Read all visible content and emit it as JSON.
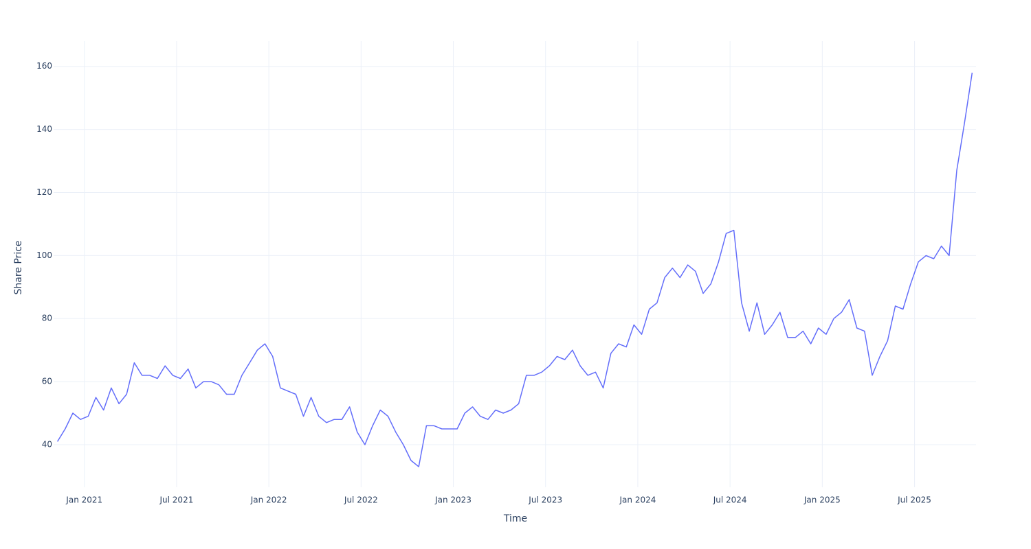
{
  "chart_data": {
    "type": "line",
    "x_label": "Time",
    "y_label": "Share Price",
    "x": [
      "2020-11",
      "2020-11",
      "2020-12",
      "2020-12",
      "2021-01",
      "2021-01",
      "2021-02",
      "2021-02",
      "2021-03",
      "2021-03",
      "2021-04",
      "2021-04",
      "2021-05",
      "2021-05",
      "2021-06",
      "2021-06",
      "2021-07",
      "2021-07",
      "2021-08",
      "2021-08",
      "2021-09",
      "2021-09",
      "2021-10",
      "2021-10",
      "2021-11",
      "2021-11",
      "2021-12",
      "2021-12",
      "2022-01",
      "2022-01",
      "2022-02",
      "2022-02",
      "2022-03",
      "2022-03",
      "2022-04",
      "2022-04",
      "2022-05",
      "2022-05",
      "2022-06",
      "2022-06",
      "2022-07",
      "2022-07",
      "2022-08",
      "2022-08",
      "2022-09",
      "2022-09",
      "2022-10",
      "2022-10",
      "2022-11",
      "2022-11",
      "2022-12",
      "2022-12",
      "2023-01",
      "2023-01",
      "2023-02",
      "2023-02",
      "2023-03",
      "2023-03",
      "2023-04",
      "2023-04",
      "2023-05",
      "2023-05",
      "2023-06",
      "2023-06",
      "2023-07",
      "2023-07",
      "2023-08",
      "2023-08",
      "2023-09",
      "2023-09",
      "2023-10",
      "2023-10",
      "2023-11",
      "2023-11",
      "2023-12",
      "2023-12",
      "2024-01",
      "2024-01",
      "2024-02",
      "2024-02",
      "2024-03",
      "2024-03",
      "2024-04",
      "2024-04",
      "2024-05",
      "2024-05",
      "2024-06",
      "2024-06",
      "2024-07",
      "2024-07",
      "2024-08",
      "2024-08",
      "2024-09",
      "2024-09",
      "2024-10",
      "2024-10",
      "2024-11",
      "2024-11",
      "2024-12",
      "2024-12",
      "2025-01",
      "2025-01",
      "2025-02",
      "2025-02",
      "2025-03",
      "2025-03",
      "2025-04",
      "2025-04",
      "2025-05",
      "2025-05",
      "2025-06",
      "2025-06",
      "2025-07",
      "2025-07",
      "2025-08",
      "2025-08",
      "2025-09",
      "2025-09",
      "2025-10",
      "2025-10"
    ],
    "series": [
      {
        "name": "Share Price",
        "color": "#636efa",
        "values": [
          41,
          45,
          50,
          48,
          49,
          55,
          51,
          58,
          53,
          56,
          66,
          62,
          62,
          61,
          65,
          62,
          61,
          64,
          58,
          60,
          60,
          59,
          56,
          56,
          62,
          66,
          70,
          72,
          68,
          58,
          57,
          56,
          49,
          55,
          49,
          47,
          48,
          48,
          52,
          44,
          40,
          46,
          51,
          49,
          44,
          40,
          35,
          33,
          46,
          46,
          45,
          45,
          45,
          50,
          52,
          49,
          48,
          51,
          50,
          51,
          53,
          62,
          62,
          63,
          65,
          68,
          67,
          70,
          65,
          62,
          63,
          58,
          69,
          72,
          71,
          78,
          75,
          83,
          85,
          93,
          96,
          93,
          97,
          95,
          88,
          91,
          98,
          107,
          108,
          85,
          76,
          85,
          75,
          78,
          82,
          74,
          74,
          76,
          72,
          77,
          75,
          80,
          82,
          86,
          77,
          76,
          62,
          68,
          73,
          84,
          83,
          91,
          98,
          100,
          99,
          103,
          100,
          127,
          142,
          158
        ]
      }
    ],
    "xlim": [
      "2020-11",
      "2025-11"
    ],
    "xticks": [
      {
        "value": "2021-01",
        "label": "Jan 2021"
      },
      {
        "value": "2021-07",
        "label": "Jul 2021"
      },
      {
        "value": "2022-01",
        "label": "Jan 2022"
      },
      {
        "value": "2022-07",
        "label": "Jul 2022"
      },
      {
        "value": "2023-01",
        "label": "Jan 2023"
      },
      {
        "value": "2023-07",
        "label": "Jul 2023"
      },
      {
        "value": "2024-01",
        "label": "Jan 2024"
      },
      {
        "value": "2024-07",
        "label": "Jul 2024"
      },
      {
        "value": "2025-01",
        "label": "Jan 2025"
      },
      {
        "value": "2025-07",
        "label": "Jul 2025"
      }
    ],
    "ylim": [
      26.5,
      168
    ],
    "yticks": [
      40,
      60,
      80,
      100,
      120,
      140,
      160
    ],
    "grid": true
  }
}
